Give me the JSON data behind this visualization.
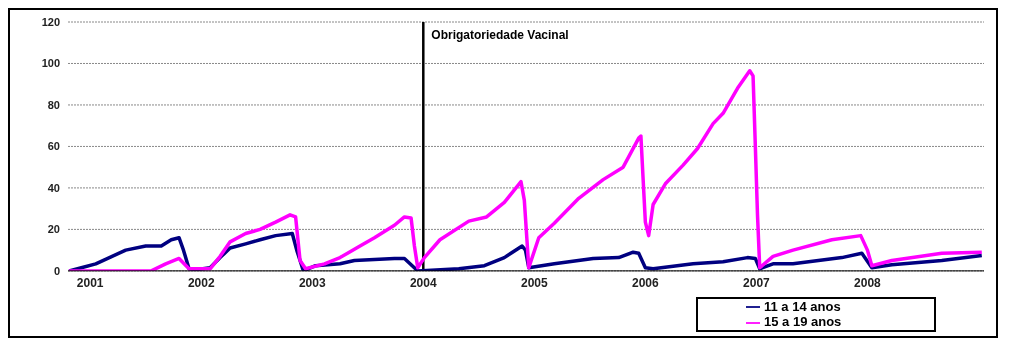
{
  "chart_data": {
    "type": "line",
    "xlim": [
      2000.8,
      2009.05
    ],
    "xticks": [
      2001,
      2002,
      2003,
      2004,
      2005,
      2006,
      2007,
      2008
    ],
    "ylim": [
      0,
      120
    ],
    "yticks": [
      0,
      20,
      40,
      60,
      80,
      100,
      120
    ],
    "grid": "y",
    "legend": "bottom right",
    "ref_lines": [
      {
        "axis": "x",
        "value": 2004,
        "label": "Obrigatoriedade Vacinal",
        "color": "#000000"
      }
    ],
    "series": [
      {
        "name": "11 a 14 anos",
        "color": "#000080",
        "x": [
          2000.81,
          2000.92,
          2001.05,
          2001.32,
          2001.5,
          2001.64,
          2001.73,
          2001.8,
          2001.84,
          2001.89,
          2001.95,
          2002.08,
          2002.17,
          2002.26,
          2002.4,
          2002.53,
          2002.67,
          2002.82,
          2002.86,
          2002.92,
          2003.03,
          2003.25,
          2003.38,
          2003.74,
          2003.83,
          2003.9,
          2003.95,
          2004.32,
          2004.55,
          2004.73,
          2004.89,
          2004.92,
          2004.95,
          2005.18,
          2005.53,
          2005.76,
          2005.89,
          2005.94,
          2006.0,
          2006.07,
          2006.43,
          2006.7,
          2006.92,
          2006.99,
          2007.03,
          2007.15,
          2007.33,
          2007.77,
          2007.95,
          2008.04,
          2008.22,
          2008.67,
          2009.03
        ],
        "values": [
          0,
          1.5,
          3.4,
          10,
          12,
          12,
          15,
          16,
          10,
          1,
          0.5,
          1.5,
          6.4,
          11,
          13,
          15,
          17,
          18,
          10,
          0,
          2.5,
          3.4,
          5,
          6,
          6,
          2.5,
          0,
          1,
          2.5,
          6.4,
          12,
          10,
          1.5,
          3.4,
          6,
          6.4,
          9,
          8.5,
          1.5,
          1,
          3.4,
          4.4,
          6.4,
          6,
          1,
          3.4,
          3.4,
          6.4,
          8.5,
          1.5,
          3,
          5,
          7.4
        ]
      },
      {
        "name": "15 a 19 anos",
        "color": "#ff00ff",
        "x": [
          2000.81,
          2001.55,
          2001.68,
          2001.8,
          2001.89,
          2001.95,
          2002.08,
          2002.17,
          2002.26,
          2002.4,
          2002.53,
          2002.67,
          2002.8,
          2002.85,
          2002.89,
          2002.94,
          2003.11,
          2003.25,
          2003.43,
          2003.56,
          2003.74,
          2003.83,
          2003.89,
          2003.92,
          2003.95,
          2004.01,
          2004.15,
          2004.41,
          2004.57,
          2004.73,
          2004.88,
          2004.91,
          2004.95,
          2005.04,
          2005.18,
          2005.4,
          2005.62,
          2005.8,
          2005.94,
          2005.96,
          2005.98,
          2006.0,
          2006.03,
          2006.07,
          2006.18,
          2006.34,
          2006.47,
          2006.61,
          2006.7,
          2006.83,
          2006.94,
          2006.97,
          2006.99,
          2007.01,
          2007.03,
          2007.15,
          2007.33,
          2007.68,
          2007.94,
          2008.0,
          2008.04,
          2008.22,
          2008.67,
          2009.03
        ],
        "values": [
          0,
          0,
          3.4,
          6,
          1,
          1,
          1,
          7,
          14,
          18,
          20,
          23.5,
          27,
          26,
          5,
          1,
          3.4,
          6.4,
          12,
          16,
          22,
          26,
          25.5,
          12,
          1.5,
          6.4,
          15,
          24,
          26,
          33,
          43,
          34,
          1.5,
          16,
          23,
          35,
          44,
          50,
          64,
          65,
          44,
          23.5,
          17,
          32,
          42,
          51,
          59,
          71,
          76,
          88,
          96.5,
          94,
          61,
          27,
          1.5,
          7,
          10,
          15,
          17,
          10,
          2.5,
          5,
          8.5,
          9
        ]
      }
    ]
  }
}
